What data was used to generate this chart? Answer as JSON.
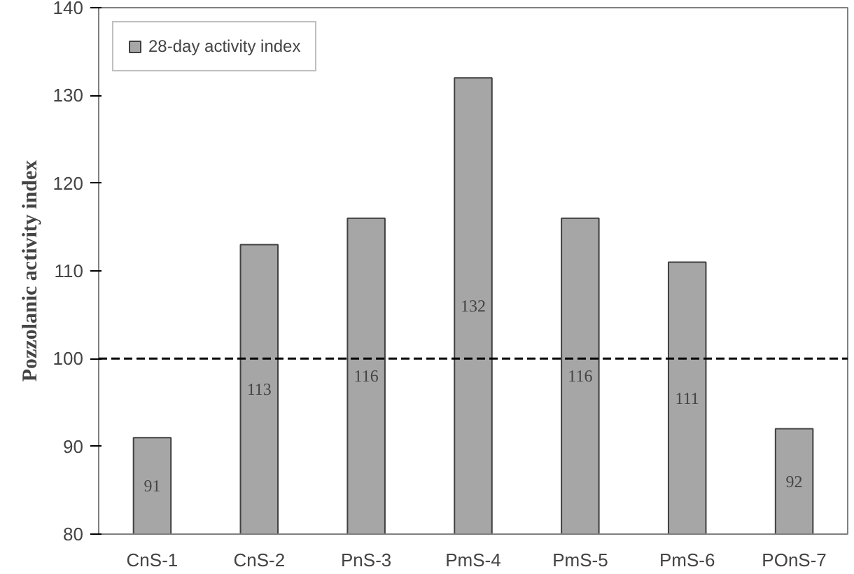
{
  "chart_data": {
    "type": "bar",
    "ylabel": "Pozzolanic activity index",
    "categories": [
      "CnS-1",
      "CnS-2",
      "PnS-3",
      "PmS-4",
      "PmS-5",
      "PmS-6",
      "POnS-7"
    ],
    "series": [
      {
        "name": "28-day activity index",
        "color": "#a6a6a6",
        "values": [
          91,
          113,
          116,
          132,
          116,
          111,
          92
        ]
      }
    ],
    "ylim": [
      80,
      140
    ],
    "yticks": [
      80,
      90,
      100,
      110,
      120,
      130,
      140
    ],
    "ref_lines": [
      {
        "axis": "y",
        "value": 100,
        "label": null,
        "color": "#000000",
        "line_style": "dashed"
      }
    ],
    "data_labels": true,
    "grid": false,
    "legend": "top left"
  }
}
